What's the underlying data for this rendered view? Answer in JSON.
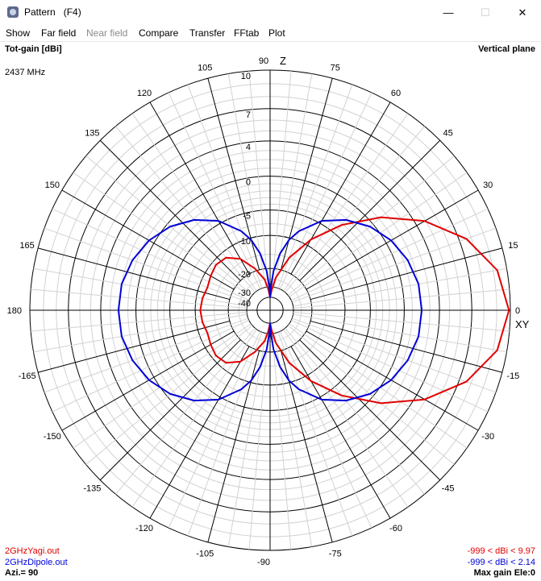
{
  "window": {
    "title": "Pattern   (F4)",
    "controls": {
      "minimize": "—",
      "maximize": "☐",
      "close": "✕"
    }
  },
  "menu": [
    "Show",
    "Far field",
    "Near field",
    "Compare",
    "Transfer",
    "FFtab",
    "Plot"
  ],
  "menu_disabled": [
    false,
    false,
    true,
    false,
    false,
    false,
    false
  ],
  "plot": {
    "quantity": "Tot-gain [dBi]",
    "frequency": "2437 MHz",
    "plane": "Vertical plane",
    "axis_z": "Z",
    "axis_xy": "XY",
    "azimuth": "Azi.= 90",
    "max_gain": "Max gain Ele:0"
  },
  "legend": [
    {
      "file": "2GHzYagi.out",
      "range": "-999 < dBi < 9.97",
      "color": "#e00000"
    },
    {
      "file": "2GHzDipole.out",
      "range": "-999 < dBi < 2.14",
      "color": "#0000d8"
    }
  ],
  "chart_data": {
    "type": "polar",
    "angle_unit": "degrees (elevation)",
    "angle_labels": [
      0,
      15,
      30,
      45,
      60,
      75,
      90,
      105,
      120,
      135,
      150,
      165,
      180,
      -165,
      -150,
      -135,
      -120,
      -105,
      -90,
      -75,
      -60,
      -45,
      -30,
      -15
    ],
    "radial_tick_labels": [
      10,
      7,
      4,
      0,
      -5,
      -10,
      -20,
      -30,
      -40
    ],
    "series": [
      {
        "name": "2GHzYagi.out",
        "color": "#e00000",
        "points": [
          [
            0,
            9.9
          ],
          [
            10,
            9.3
          ],
          [
            20,
            7.6
          ],
          [
            30,
            4.9
          ],
          [
            40,
            1.3
          ],
          [
            50,
            -3.2
          ],
          [
            60,
            -8.5
          ],
          [
            70,
            -15
          ],
          [
            80,
            -24
          ],
          [
            85,
            -32
          ],
          [
            90,
            -40
          ],
          [
            95,
            -32
          ],
          [
            100,
            -25
          ],
          [
            110,
            -19
          ],
          [
            120,
            -14
          ],
          [
            130,
            -11.5
          ],
          [
            140,
            -11
          ],
          [
            150,
            -11.5
          ],
          [
            160,
            -12
          ],
          [
            170,
            -11.5
          ],
          [
            180,
            -11.2
          ],
          [
            190,
            -11.5
          ],
          [
            200,
            -12
          ],
          [
            210,
            -11.5
          ],
          [
            220,
            -11
          ],
          [
            230,
            -11.5
          ],
          [
            240,
            -14
          ],
          [
            250,
            -19
          ],
          [
            260,
            -25
          ],
          [
            265,
            -32
          ],
          [
            270,
            -40
          ],
          [
            275,
            -32
          ],
          [
            280,
            -24
          ],
          [
            290,
            -15
          ],
          [
            300,
            -8.5
          ],
          [
            310,
            -3.2
          ],
          [
            320,
            1.3
          ],
          [
            330,
            4.9
          ],
          [
            340,
            7.6
          ],
          [
            350,
            9.3
          ],
          [
            360,
            9.9
          ]
        ]
      },
      {
        "name": "2GHzDipole.out",
        "color": "#0000d8",
        "points": [
          [
            0,
            2.1
          ],
          [
            10,
            2.0
          ],
          [
            20,
            1.5
          ],
          [
            30,
            0.7
          ],
          [
            40,
            -0.5
          ],
          [
            50,
            -2.2
          ],
          [
            60,
            -4.5
          ],
          [
            70,
            -8
          ],
          [
            75,
            -10.5
          ],
          [
            80,
            -14.5
          ],
          [
            85,
            -21
          ],
          [
            88,
            -30
          ],
          [
            90,
            -40
          ],
          [
            92,
            -30
          ],
          [
            95,
            -21
          ],
          [
            100,
            -14.5
          ],
          [
            105,
            -10.5
          ],
          [
            110,
            -8
          ],
          [
            120,
            -4.5
          ],
          [
            130,
            -2.2
          ],
          [
            140,
            -0.5
          ],
          [
            150,
            0.7
          ],
          [
            160,
            1.5
          ],
          [
            170,
            2.0
          ],
          [
            180,
            2.1
          ],
          [
            190,
            2.0
          ],
          [
            200,
            1.5
          ],
          [
            210,
            0.7
          ],
          [
            220,
            -0.5
          ],
          [
            230,
            -2.2
          ],
          [
            240,
            -4.5
          ],
          [
            250,
            -8
          ],
          [
            255,
            -10.5
          ],
          [
            260,
            -14.5
          ],
          [
            265,
            -21
          ],
          [
            268,
            -30
          ],
          [
            270,
            -40
          ],
          [
            272,
            -30
          ],
          [
            275,
            -21
          ],
          [
            280,
            -14.5
          ],
          [
            285,
            -10.5
          ],
          [
            290,
            -8
          ],
          [
            300,
            -4.5
          ],
          [
            310,
            -2.2
          ],
          [
            320,
            -0.5
          ],
          [
            330,
            0.7
          ],
          [
            340,
            1.5
          ],
          [
            350,
            2.0
          ],
          [
            360,
            2.1
          ]
        ]
      }
    ]
  }
}
